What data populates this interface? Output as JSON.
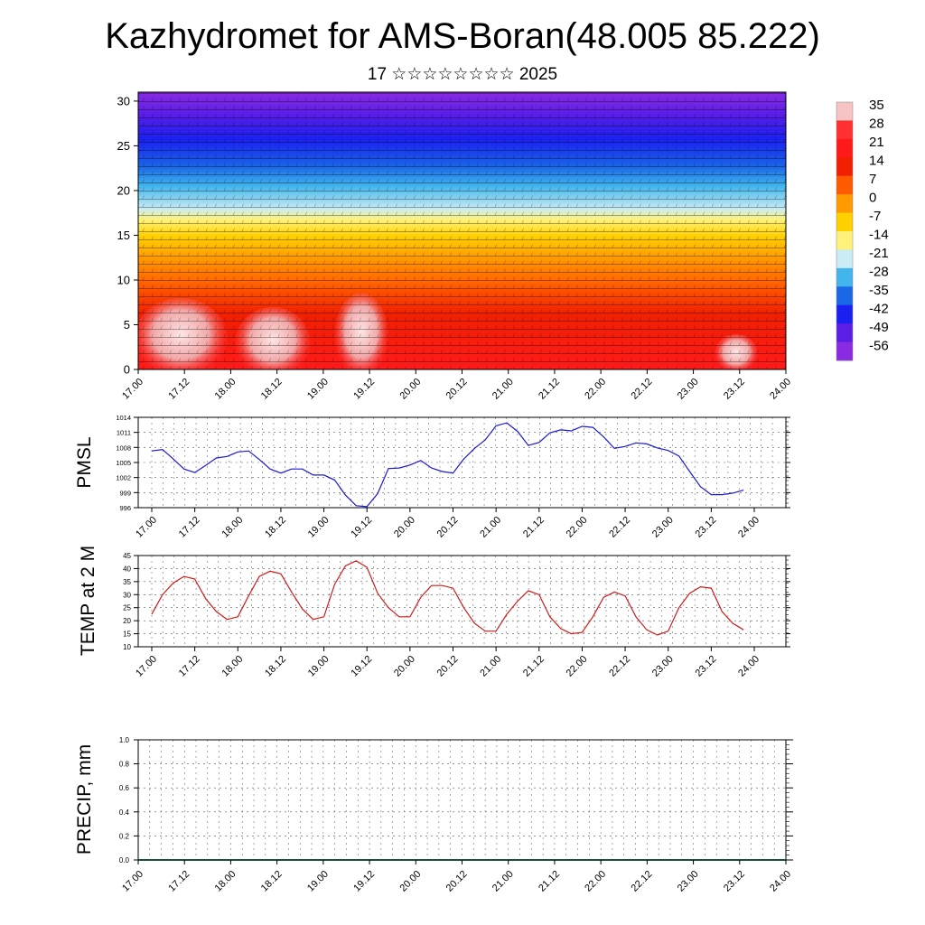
{
  "page": {
    "title": "Kazhydromet for AMS-Boran(48.005 85.222)",
    "subtitle": "17 ☆☆☆☆☆☆☆☆ 2025"
  },
  "colors": {
    "pmsl_line": "#1a1ad6",
    "temp_line": "#d11a1a",
    "grid": "#555555",
    "axis": "#000000"
  },
  "time_labels": [
    "17.00",
    "17.12",
    "18.00",
    "18.12",
    "19.00",
    "19.12",
    "20.00",
    "20.12",
    "21.00",
    "21.12",
    "22.00",
    "22.12",
    "23.00",
    "23.12",
    "24.00"
  ],
  "chart_data": [
    {
      "type": "heatmap",
      "name": "cross-section",
      "x_ticks": [
        "17.00",
        "17.12",
        "18.00",
        "18.12",
        "19.00",
        "19.12",
        "20.00",
        "20.12",
        "21.00",
        "21.12",
        "22.00",
        "22.12",
        "23.00",
        "23.12",
        "24.00"
      ],
      "y_ticks": [
        "0",
        "5",
        "10",
        "15",
        "20",
        "25",
        "30"
      ],
      "ylim": [
        0,
        31
      ],
      "colorbar": {
        "labels": [
          "35",
          "28",
          "21",
          "14",
          "7",
          "0",
          "-7",
          "-14",
          "-21",
          "-28",
          "-35",
          "-42",
          "-49",
          "-56"
        ],
        "colors": [
          "#f6c4c4",
          "#ff3030",
          "#ff1a1a",
          "#f02000",
          "#ff5a00",
          "#ff9a00",
          "#ffd000",
          "#fff27a",
          "#c9ecf5",
          "#42b6ec",
          "#1a68e6",
          "#1a20f0",
          "#5a1ee6",
          "#8a2be2"
        ]
      }
    },
    {
      "type": "line",
      "ylabel": "PMSL",
      "y_ticks": [
        "1014",
        "1011",
        "1008",
        "1005",
        "1002",
        "999",
        "996"
      ],
      "ylim": [
        996,
        1014
      ],
      "x_ticks": [
        "17.00",
        "17.12",
        "18.00",
        "18.12",
        "19.00",
        "19.12",
        "20.00",
        "20.12",
        "21.00",
        "21.12",
        "22.00",
        "22.12",
        "23.00",
        "23.12",
        "24.00"
      ],
      "x_hours": [
        0,
        3,
        6,
        9,
        12,
        15,
        18,
        21,
        24,
        27,
        30,
        33,
        36,
        39,
        42,
        45,
        48,
        51,
        54,
        57,
        60,
        63,
        66,
        69,
        72,
        75,
        78,
        81,
        84,
        87,
        90,
        93,
        96,
        99,
        102,
        105,
        108,
        111,
        114,
        117,
        120,
        123,
        126,
        129,
        132,
        135,
        138,
        141,
        144,
        147,
        150,
        153,
        156,
        159,
        162,
        165
      ],
      "values": [
        1007.3,
        1007.6,
        1005.7,
        1003.7,
        1003.0,
        1004.4,
        1005.9,
        1006.2,
        1007.1,
        1007.3,
        1005.6,
        1003.7,
        1002.9,
        1003.7,
        1003.7,
        1002.5,
        1002.5,
        1001.5,
        998.5,
        996.4,
        996.2,
        998.8,
        1003.8,
        1003.9,
        1004.5,
        1005.4,
        1003.9,
        1003.2,
        1002.9,
        1005.7,
        1007.8,
        1009.5,
        1012.3,
        1012.9,
        1011.2,
        1008.4,
        1009.0,
        1010.9,
        1011.5,
        1011.3,
        1012.2,
        1012.0,
        1010.1,
        1007.8,
        1008.2,
        1008.9,
        1008.7,
        1007.9,
        1007.4,
        1006.3,
        1003.2,
        1000.2,
        998.6,
        998.6,
        998.9,
        999.5
      ]
    },
    {
      "type": "line",
      "ylabel": "TEMP at 2 M",
      "y_ticks": [
        "45",
        "40",
        "35",
        "30",
        "25",
        "20",
        "15",
        "10"
      ],
      "ylim": [
        10,
        45
      ],
      "x_ticks": [
        "17.00",
        "17.12",
        "18.00",
        "18.12",
        "19.00",
        "19.12",
        "20.00",
        "20.12",
        "21.00",
        "21.12",
        "22.00",
        "22.12",
        "23.00",
        "23.12",
        "24.00"
      ],
      "x_hours": [
        0,
        3,
        6,
        9,
        12,
        15,
        18,
        21,
        24,
        27,
        30,
        33,
        36,
        39,
        42,
        45,
        48,
        51,
        54,
        57,
        60,
        63,
        66,
        69,
        72,
        75,
        78,
        81,
        84,
        87,
        90,
        93,
        96,
        99,
        102,
        105,
        108,
        111,
        114,
        117,
        120,
        123,
        126,
        129,
        132,
        135,
        138,
        141,
        144,
        147,
        150,
        153,
        156,
        159,
        162,
        165
      ],
      "values": [
        22.5,
        30.0,
        34.5,
        37.0,
        36.0,
        28.5,
        23.5,
        20.5,
        21.5,
        29.5,
        37.0,
        39.0,
        38.0,
        31.0,
        24.5,
        20.5,
        21.5,
        34.0,
        41.0,
        43.0,
        40.5,
        30.5,
        25.0,
        21.5,
        21.5,
        29.0,
        33.5,
        33.5,
        32.5,
        25.0,
        19.0,
        16.0,
        16.0,
        22.5,
        27.5,
        31.5,
        30.0,
        21.5,
        17.0,
        15.0,
        15.5,
        21.5,
        29.0,
        31.0,
        29.5,
        21.5,
        16.5,
        14.5,
        16.0,
        25.0,
        30.5,
        33.0,
        32.5,
        23.5,
        19.0,
        16.5
      ]
    },
    {
      "type": "bar",
      "ylabel": "PRECIP, mm",
      "y_ticks": [
        "1.0",
        "0.8",
        "0.6",
        "0.4",
        "0.2",
        "0.0"
      ],
      "ylim": [
        0,
        1
      ],
      "x_ticks": [
        "17.00",
        "17.12",
        "18.00",
        "18.12",
        "19.00",
        "19.12",
        "20.00",
        "20.12",
        "21.00",
        "21.12",
        "22.00",
        "22.12",
        "23.00",
        "23.12",
        "24.00"
      ],
      "values": []
    }
  ]
}
